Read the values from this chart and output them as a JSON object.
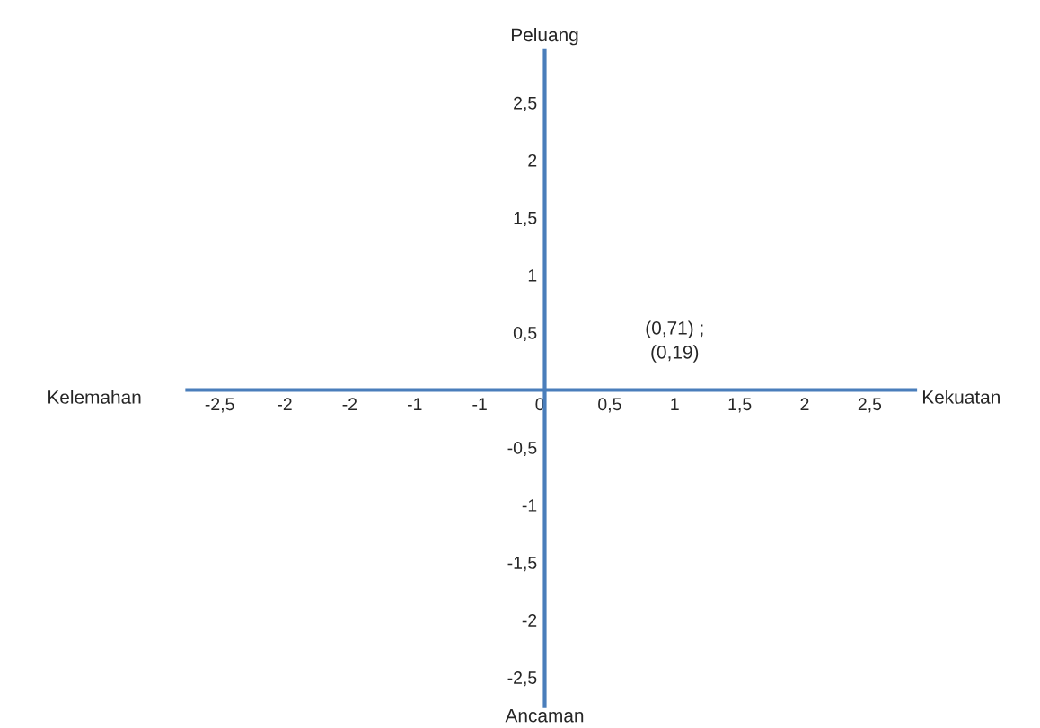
{
  "chart_data": {
    "type": "scatter",
    "xlabel": "Kekuatan",
    "ylabel": "Peluang",
    "annotations": [
      "Kelemahan",
      "Ancaman",
      "(0,71) ;\n(0,19)"
    ],
    "xlim": [
      -2.75,
      2.85
    ],
    "ylim": [
      -2.75,
      2.95
    ],
    "xticks": [
      {
        "value": -2.5,
        "label": "-2,5"
      },
      {
        "value": -2,
        "label": "-2"
      },
      {
        "value": -1.5,
        "label": "-2"
      },
      {
        "value": -1,
        "label": "-1"
      },
      {
        "value": -0.5,
        "label": "-1"
      },
      0,
      {
        "value": 0.5,
        "label": "0,5"
      },
      1,
      {
        "value": 1.5,
        "label": "1,5"
      },
      2,
      {
        "value": 2.5,
        "label": "2,5"
      }
    ],
    "yticks": [
      {
        "value": -2.5,
        "label": "-2,5"
      },
      -2,
      {
        "value": -1.5,
        "label": "-1,5"
      },
      -1,
      {
        "value": -0.5,
        "label": "-0,5"
      },
      {
        "value": 0.5,
        "label": "0,5"
      },
      1,
      {
        "value": 1.5,
        "label": "1,5"
      },
      2,
      {
        "value": 2.5,
        "label": "2,5"
      }
    ],
    "color": "#4a7ebb",
    "grid": false
  }
}
